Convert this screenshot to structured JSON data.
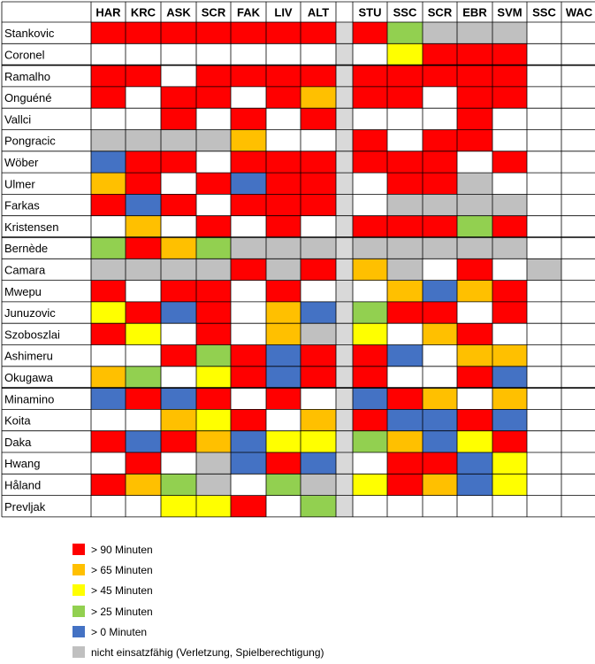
{
  "chart_data": {
    "type": "heatmap",
    "columns": [
      "HAR",
      "KRC",
      "ASK",
      "SCR",
      "FAK",
      "LIV",
      "ALT",
      "",
      "STU",
      "SSC",
      "SCR",
      "EBR",
      "SVM",
      "SSC",
      "WAC"
    ],
    "rows": [
      {
        "name": "Stankovic",
        "cells": [
          "R",
          "R",
          "R",
          "R",
          "R",
          "R",
          "R",
          "",
          "R",
          "G",
          "S",
          "S",
          "S",
          "",
          ""
        ]
      },
      {
        "name": "Coronel",
        "cells": [
          "",
          "",
          "",
          "",
          "",
          "",
          "",
          "",
          "",
          "Y",
          "R",
          "R",
          "R",
          "",
          ""
        ]
      },
      {
        "name": "Ramalho",
        "cells": [
          "R",
          "R",
          "",
          "R",
          "R",
          "R",
          "R",
          "",
          "R",
          "R",
          "R",
          "R",
          "R",
          "",
          ""
        ]
      },
      {
        "name": "Onguéné",
        "cells": [
          "R",
          "",
          "R",
          "R",
          "",
          "R",
          "O",
          "",
          "R",
          "R",
          "",
          "R",
          "R",
          "",
          ""
        ]
      },
      {
        "name": "Vallci",
        "cells": [
          "",
          "",
          "R",
          "",
          "R",
          "",
          "R",
          "",
          "",
          "",
          "",
          "R",
          "",
          "",
          ""
        ]
      },
      {
        "name": "Pongracic",
        "cells": [
          "S",
          "S",
          "S",
          "S",
          "O",
          "",
          "",
          "",
          "R",
          "",
          "R",
          "R",
          "",
          "",
          ""
        ]
      },
      {
        "name": "Wöber",
        "cells": [
          "B",
          "R",
          "R",
          "",
          "R",
          "R",
          "R",
          "",
          "R",
          "R",
          "R",
          "",
          "R",
          "",
          ""
        ]
      },
      {
        "name": "Ulmer",
        "cells": [
          "O",
          "R",
          "",
          "R",
          "B",
          "R",
          "R",
          "",
          "",
          "R",
          "R",
          "S",
          "",
          "",
          ""
        ]
      },
      {
        "name": "Farkas",
        "cells": [
          "R",
          "B",
          "R",
          "",
          "R",
          "R",
          "R",
          "",
          "",
          "S",
          "S",
          "S",
          "S",
          "",
          ""
        ]
      },
      {
        "name": "Kristensen",
        "cells": [
          "",
          "O",
          "",
          "R",
          "",
          "R",
          "",
          "",
          "R",
          "R",
          "R",
          "G",
          "R",
          "",
          ""
        ]
      },
      {
        "name": "Bernède",
        "cells": [
          "G",
          "R",
          "O",
          "G",
          "S",
          "S",
          "S",
          "",
          "S",
          "S",
          "S",
          "S",
          "S",
          "",
          ""
        ]
      },
      {
        "name": "Camara",
        "cells": [
          "S",
          "S",
          "S",
          "S",
          "R",
          "S",
          "R",
          "",
          "O",
          "S",
          "",
          "R",
          "",
          "S",
          ""
        ]
      },
      {
        "name": "Mwepu",
        "cells": [
          "R",
          "",
          "R",
          "R",
          "",
          "R",
          "",
          "",
          "",
          "O",
          "B",
          "O",
          "R",
          "",
          ""
        ]
      },
      {
        "name": "Junuzovic",
        "cells": [
          "Y",
          "R",
          "B",
          "R",
          "",
          "O",
          "B",
          "",
          "G",
          "R",
          "R",
          "",
          "R",
          "",
          ""
        ]
      },
      {
        "name": "Szoboszlai",
        "cells": [
          "R",
          "Y",
          "",
          "R",
          "",
          "O",
          "S",
          "",
          "Y",
          "",
          "O",
          "R",
          "",
          "",
          ""
        ]
      },
      {
        "name": "Ashimeru",
        "cells": [
          "",
          "",
          "R",
          "G",
          "R",
          "B",
          "R",
          "",
          "R",
          "B",
          "",
          "O",
          "O",
          "",
          ""
        ]
      },
      {
        "name": "Okugawa",
        "cells": [
          "O",
          "G",
          "",
          "Y",
          "R",
          "B",
          "R",
          "",
          "R",
          "",
          "",
          "R",
          "B",
          "",
          ""
        ]
      },
      {
        "name": "Minamino",
        "cells": [
          "B",
          "R",
          "B",
          "R",
          "",
          "R",
          "",
          "",
          "B",
          "R",
          "O",
          "",
          "O",
          "",
          ""
        ]
      },
      {
        "name": "Koita",
        "cells": [
          "",
          "",
          "O",
          "Y",
          "R",
          "",
          "O",
          "",
          "R",
          "B",
          "B",
          "R",
          "B",
          "",
          ""
        ]
      },
      {
        "name": "Daka",
        "cells": [
          "R",
          "B",
          "R",
          "O",
          "B",
          "Y",
          "Y",
          "",
          "G",
          "O",
          "B",
          "Y",
          "R",
          "",
          ""
        ]
      },
      {
        "name": "Hwang",
        "cells": [
          "",
          "R",
          "",
          "S",
          "B",
          "R",
          "B",
          "",
          "",
          "R",
          "R",
          "B",
          "Y",
          "",
          ""
        ]
      },
      {
        "name": "Håland",
        "cells": [
          "R",
          "O",
          "G",
          "S",
          "",
          "G",
          "S",
          "",
          "Y",
          "R",
          "O",
          "B",
          "Y",
          "",
          ""
        ]
      },
      {
        "name": "Prevljak",
        "cells": [
          "",
          "",
          "Y",
          "Y",
          "R",
          "",
          "G",
          "",
          "",
          "",
          "",
          "",
          "",
          "",
          ""
        ]
      }
    ],
    "group_separators_after_rows": [
      1,
      9,
      16
    ],
    "legend": [
      {
        "code": "R",
        "label": "> 90 Minuten"
      },
      {
        "code": "O",
        "label": "> 65 Minuten"
      },
      {
        "code": "Y",
        "label": "> 45 Minuten"
      },
      {
        "code": "G",
        "label": "> 25 Minuten"
      },
      {
        "code": "B",
        "label": "> 0 Minuten"
      },
      {
        "code": "S",
        "label": "nicht einsatzfähig (Verletzung, Spielberechtigung)"
      }
    ],
    "colors": {
      "R": "#ff0000",
      "O": "#ffc000",
      "Y": "#ffff00",
      "G": "#92d050",
      "B": "#4472c4",
      "S": "#c0c0c0",
      "": "#ffffff",
      "divider_col": "#d9d9d9"
    }
  }
}
